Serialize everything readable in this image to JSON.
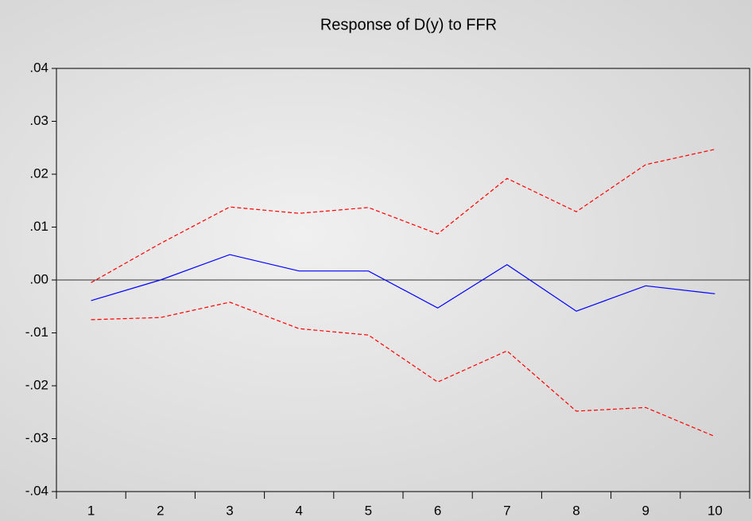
{
  "chart_data": {
    "type": "line",
    "title": "Response of D(y) to FFR",
    "categories": [
      "1",
      "2",
      "3",
      "4",
      "5",
      "6",
      "7",
      "8",
      "9",
      "10"
    ],
    "series": [
      {
        "color": "#0000ff",
        "style": "solid",
        "values": [
          -0.0039,
          0.0,
          0.0048,
          0.0017,
          0.0017,
          -0.0053,
          0.0029,
          -0.0059,
          -0.0011,
          -0.0026
        ]
      },
      {
        "color": "#ff0000",
        "style": "dashed",
        "values": [
          -0.0005,
          0.0069,
          0.0138,
          0.0126,
          0.0137,
          0.0087,
          0.0192,
          0.0129,
          0.0218,
          0.0247
        ]
      },
      {
        "color": "#ff0000",
        "style": "dashed",
        "values": [
          -0.0075,
          -0.0071,
          -0.0042,
          -0.0092,
          -0.0104,
          -0.0193,
          -0.0134,
          -0.0248,
          -0.0241,
          -0.0296
        ]
      }
    ],
    "ylim": [
      -0.04,
      0.04
    ],
    "yticks": [
      {
        "value": -0.04,
        "label": "-.04"
      },
      {
        "value": -0.03,
        "label": "-.03"
      },
      {
        "value": -0.02,
        "label": "-.02"
      },
      {
        "value": -0.01,
        "label": "-.01"
      },
      {
        "value": 0,
        "label": ".00"
      },
      {
        "value": 0.01,
        "label": ".01"
      },
      {
        "value": 0.02,
        "label": ".02"
      },
      {
        "value": 0.03,
        "label": ".03"
      },
      {
        "value": 0.04,
        "label": ".04"
      }
    ],
    "zero_line": true
  }
}
